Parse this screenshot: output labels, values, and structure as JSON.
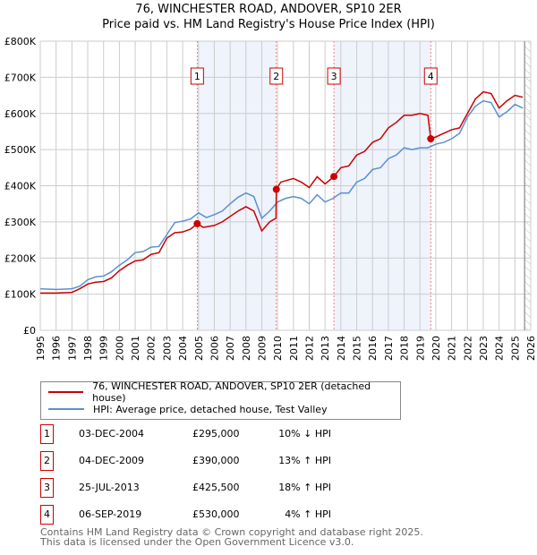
{
  "chart_data": {
    "type": "line",
    "title": "76, WINCHESTER ROAD, ANDOVER, SP10 2ER",
    "subtitle": "Price paid vs. HM Land Registry's House Price Index (HPI)",
    "xlim": [
      1995,
      2026
    ],
    "ylim": [
      0,
      800000
    ],
    "x_ticks": [
      "1995",
      "1996",
      "1997",
      "1998",
      "1999",
      "2000",
      "2001",
      "2002",
      "2003",
      "2004",
      "2005",
      "2006",
      "2007",
      "2008",
      "2009",
      "2010",
      "2011",
      "2012",
      "2013",
      "2014",
      "2015",
      "2016",
      "2017",
      "2018",
      "2019",
      "2020",
      "2021",
      "2022",
      "2023",
      "2024",
      "2025",
      "2026"
    ],
    "y_ticks": [
      {
        "v": 0,
        "label": "£0"
      },
      {
        "v": 100000,
        "label": "£100K"
      },
      {
        "v": 200000,
        "label": "£200K"
      },
      {
        "v": 300000,
        "label": "£300K"
      },
      {
        "v": 400000,
        "label": "£400K"
      },
      {
        "v": 500000,
        "label": "£500K"
      },
      {
        "v": 600000,
        "label": "£600K"
      },
      {
        "v": 700000,
        "label": "£700K"
      },
      {
        "v": 800000,
        "label": "£800K"
      }
    ],
    "grid": true,
    "shaded_periods": [
      [
        2004.92,
        2009.92
      ],
      [
        2013.56,
        2019.68
      ]
    ],
    "forecast_start": 2025.5,
    "series": [
      {
        "name": "76, WINCHESTER ROAD, ANDOVER, SP10 2ER (detached house)",
        "color": "#cc0000",
        "x": [
          1995,
          1996,
          1997,
          1997.5,
          1998,
          1998.5,
          1999,
          1999.5,
          2000,
          2000.5,
          2001,
          2001.5,
          2002,
          2002.5,
          2003,
          2003.5,
          2004,
          2004.5,
          2004.92,
          2005.3,
          2006,
          2006.5,
          2007,
          2007.5,
          2008,
          2008.5,
          2009,
          2009.5,
          2009.9,
          2009.92,
          2010.2,
          2011,
          2011.5,
          2012,
          2012.5,
          2013,
          2013.56,
          2014,
          2014.5,
          2015,
          2015.5,
          2016,
          2016.5,
          2017,
          2017.5,
          2018,
          2018.5,
          2019,
          2019.5,
          2019.68,
          2020,
          2020.5,
          2021,
          2021.5,
          2022,
          2022.5,
          2023,
          2023.5,
          2024,
          2024.5,
          2025,
          2025.5
        ],
        "y": [
          103000,
          103000,
          105000,
          115000,
          128000,
          133000,
          135000,
          145000,
          165000,
          180000,
          192000,
          195000,
          210000,
          215000,
          255000,
          270000,
          272000,
          280000,
          295000,
          285000,
          290000,
          300000,
          315000,
          330000,
          342000,
          330000,
          275000,
          300000,
          310000,
          390000,
          410000,
          420000,
          410000,
          395000,
          425000,
          405000,
          425500,
          450000,
          455000,
          485000,
          495000,
          520000,
          530000,
          560000,
          575000,
          595000,
          595000,
          600000,
          595000,
          530000,
          535000,
          545000,
          555000,
          560000,
          600000,
          640000,
          660000,
          655000,
          615000,
          635000,
          650000,
          645000
        ]
      },
      {
        "name": "HPI: Average price, detached house, Test Valley",
        "color": "#5b8fd0",
        "x": [
          1995,
          1996,
          1997,
          1997.5,
          1998,
          1998.5,
          1999,
          1999.5,
          2000,
          2000.5,
          2001,
          2001.5,
          2002,
          2002.5,
          2003,
          2003.5,
          2004,
          2004.5,
          2005,
          2005.5,
          2006,
          2006.5,
          2007,
          2007.5,
          2008,
          2008.5,
          2009,
          2009.5,
          2010,
          2010.5,
          2011,
          2011.5,
          2012,
          2012.5,
          2013,
          2013.5,
          2014,
          2014.5,
          2015,
          2015.5,
          2016,
          2016.5,
          2017,
          2017.5,
          2018,
          2018.5,
          2019,
          2019.5,
          2020,
          2020.5,
          2021,
          2021.5,
          2022,
          2022.5,
          2023,
          2023.5,
          2024,
          2024.5,
          2025,
          2025.5
        ],
        "y": [
          115000,
          113000,
          115000,
          122000,
          140000,
          148000,
          150000,
          162000,
          180000,
          195000,
          215000,
          218000,
          230000,
          232000,
          265000,
          298000,
          302000,
          308000,
          325000,
          312000,
          320000,
          330000,
          350000,
          368000,
          380000,
          370000,
          310000,
          330000,
          355000,
          365000,
          370000,
          365000,
          350000,
          375000,
          355000,
          365000,
          380000,
          380000,
          410000,
          420000,
          445000,
          450000,
          475000,
          485000,
          505000,
          500000,
          505000,
          505000,
          515000,
          520000,
          530000,
          545000,
          590000,
          620000,
          635000,
          630000,
          590000,
          605000,
          625000,
          615000
        ]
      }
    ],
    "sales": [
      {
        "n": "1",
        "x": 2004.92,
        "y": 295000,
        "date": "03-DEC-2004",
        "price": "£295,000",
        "hpi": "10% ↓ HPI"
      },
      {
        "n": "2",
        "x": 2009.92,
        "y": 390000,
        "date": "04-DEC-2009",
        "price": "£390,000",
        "hpi": "13% ↑ HPI"
      },
      {
        "n": "3",
        "x": 2013.56,
        "y": 425500,
        "date": "25-JUL-2013",
        "price": "£425,500",
        "hpi": "18% ↑ HPI"
      },
      {
        "n": "4",
        "x": 2019.68,
        "y": 530000,
        "date": "06-SEP-2019",
        "price": "£530,000",
        "hpi": "4% ↑ HPI"
      }
    ]
  },
  "legend": {
    "red": "76, WINCHESTER ROAD, ANDOVER, SP10 2ER (detached house)",
    "blue": "HPI: Average price, detached house, Test Valley"
  },
  "footer": {
    "line1": "Contains HM Land Registry data © Crown copyright and database right 2025.",
    "line2": "This data is licensed under the Open Government Licence v3.0."
  }
}
